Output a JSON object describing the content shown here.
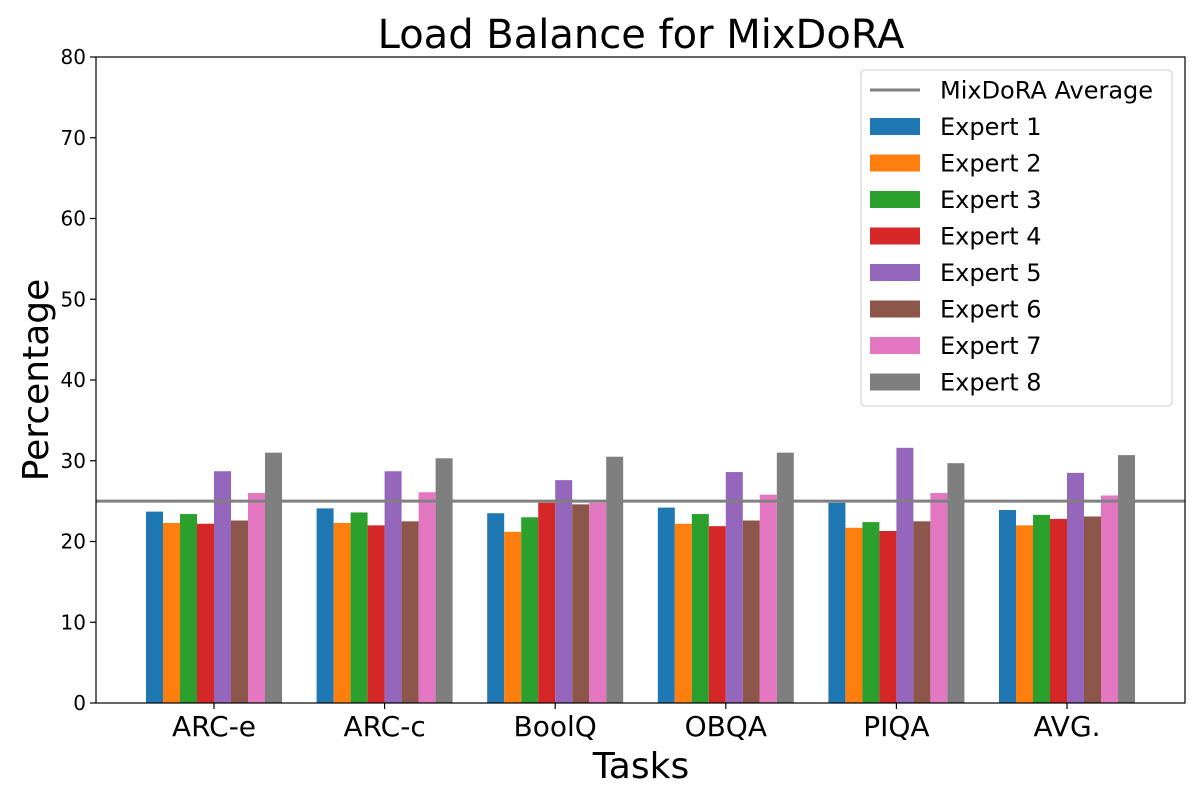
{
  "chart_data": {
    "type": "bar",
    "title": "Load Balance for MixDoRA",
    "xlabel": "Tasks",
    "ylabel": "Percentage",
    "ylim": [
      0,
      80
    ],
    "yticks": [
      0,
      10,
      20,
      30,
      40,
      50,
      60,
      70,
      80
    ],
    "categories": [
      "ARC-e",
      "ARC-c",
      "BoolQ",
      "OBQA",
      "PIQA",
      "AVG."
    ],
    "series": [
      {
        "name": "Expert 1",
        "color": "#1f77b4",
        "values": [
          23.7,
          24.1,
          23.5,
          24.2,
          24.8,
          23.9
        ]
      },
      {
        "name": "Expert 2",
        "color": "#ff7f0e",
        "values": [
          22.3,
          22.3,
          21.2,
          22.2,
          21.7,
          22.0
        ]
      },
      {
        "name": "Expert 3",
        "color": "#2ca02c",
        "values": [
          23.4,
          23.6,
          23.0,
          23.4,
          22.4,
          23.3
        ]
      },
      {
        "name": "Expert 4",
        "color": "#d62728",
        "values": [
          22.2,
          22.0,
          24.8,
          21.9,
          21.3,
          22.8
        ]
      },
      {
        "name": "Expert 5",
        "color": "#9467bd",
        "values": [
          28.7,
          28.7,
          27.6,
          28.6,
          31.6,
          28.5
        ]
      },
      {
        "name": "Expert 6",
        "color": "#8c564b",
        "values": [
          22.6,
          22.5,
          24.6,
          22.6,
          22.5,
          23.1
        ]
      },
      {
        "name": "Expert 7",
        "color": "#e377c2",
        "values": [
          26.0,
          26.1,
          24.8,
          25.8,
          26.0,
          25.7
        ]
      },
      {
        "name": "Expert 8",
        "color": "#7f7f7f",
        "values": [
          31.0,
          30.3,
          30.5,
          31.0,
          29.7,
          30.7
        ]
      }
    ],
    "reference_line": {
      "name": "MixDoRA Average",
      "value": 25,
      "color": "#808080"
    },
    "legend_position": "top-right",
    "grid": false
  }
}
